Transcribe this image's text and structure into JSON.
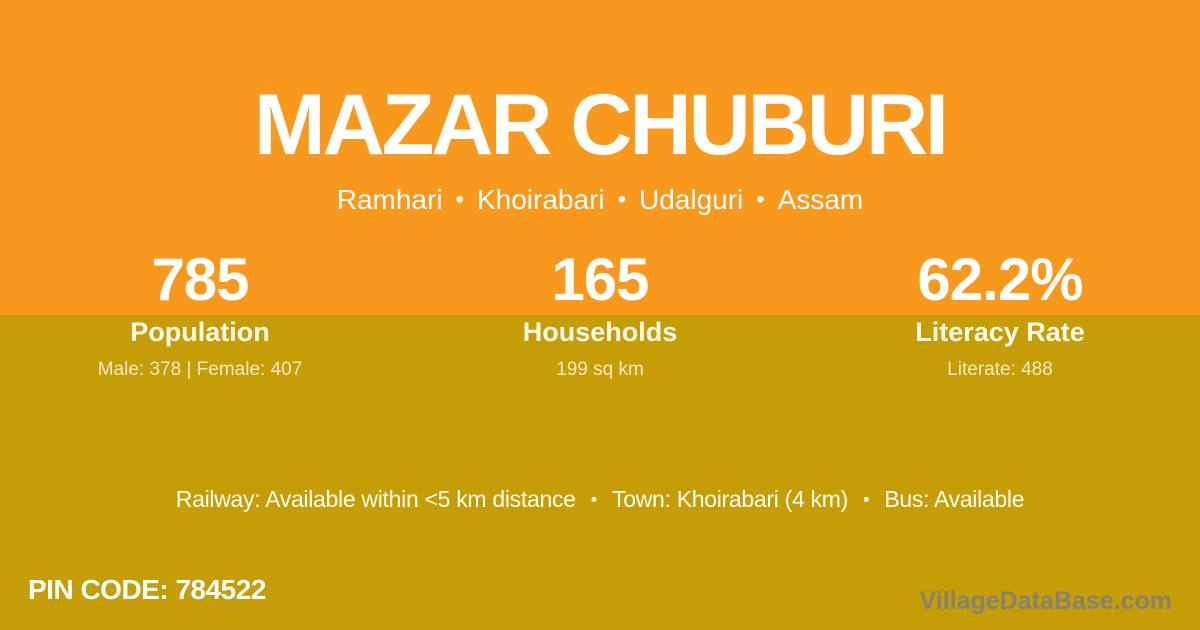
{
  "card": {
    "title": "MAZAR CHUBURI",
    "breadcrumb": {
      "separator": "•",
      "parts": [
        "Ramhari",
        "Khoirabari",
        "Udalguri",
        "Assam"
      ]
    }
  },
  "stats": [
    {
      "value": "785",
      "label": "Population",
      "detail": "Male: 378 | Female: 407"
    },
    {
      "value": "165",
      "label": "Households",
      "detail": "199 sq km"
    },
    {
      "value": "62.2%",
      "label": "Literacy Rate",
      "detail": "Literate: 488"
    }
  ],
  "amenities": {
    "separator": "•",
    "items": [
      "Railway: Available within <5 km distance",
      "Town: Khoirabari (4 km)",
      "Bus: Available"
    ]
  },
  "footer": {
    "pin_code": "PIN CODE: 784522",
    "watermark": "VillageDataBase.com"
  },
  "colors": {
    "top_background": "#F8981D",
    "bottom_background": "#C49D07",
    "text_primary": "#FFFFFF",
    "text_cream": "#F3E9C4",
    "watermark_gray": "#7E7E80"
  }
}
